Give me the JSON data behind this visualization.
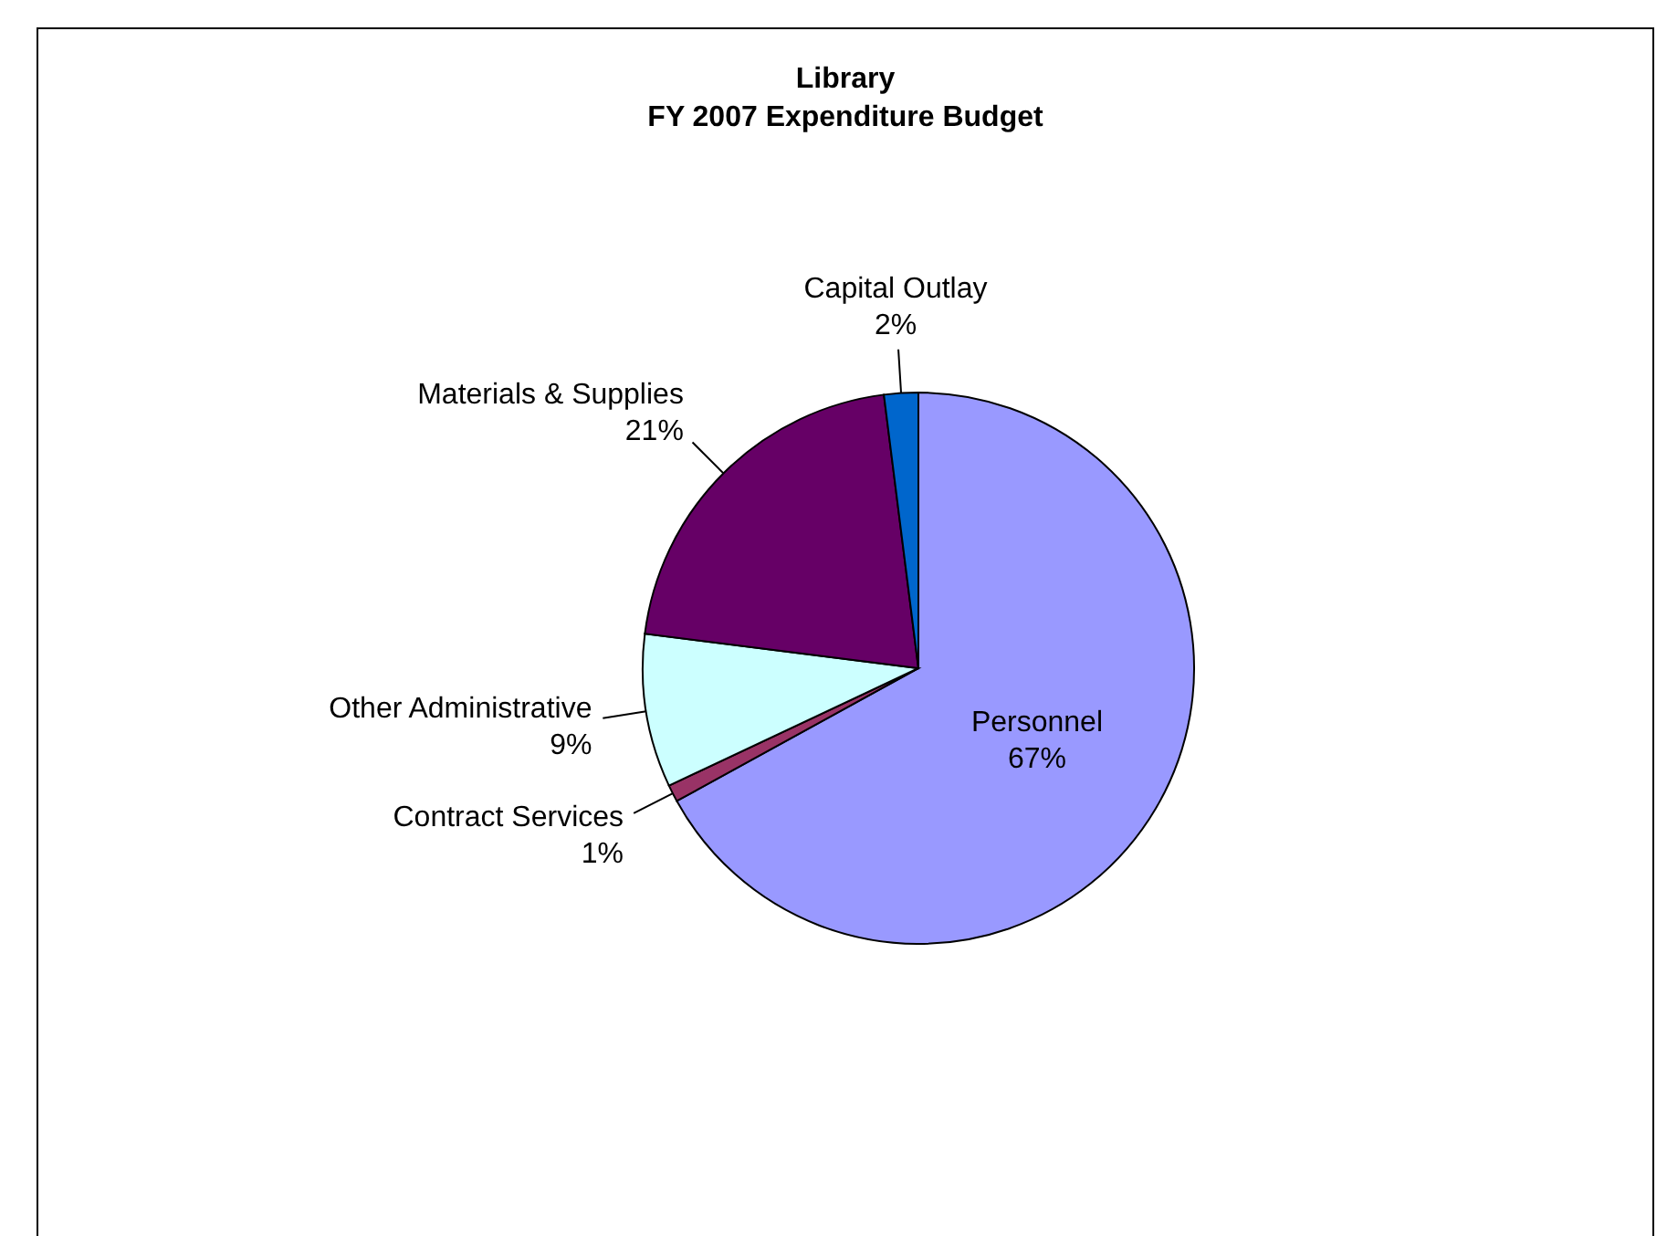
{
  "chart_data": {
    "type": "pie",
    "title": "Library\nFY 2007 Expenditure Budget",
    "categories": [
      "Personnel",
      "Contract Services",
      "Other Administrative",
      "Materials & Supplies",
      "Capital Outlay"
    ],
    "values": [
      67,
      1,
      9,
      21,
      2
    ],
    "colors": [
      "#9999ff",
      "#993366",
      "#ccffff",
      "#660066",
      "#0066cc"
    ],
    "value_labels": [
      "67%",
      "1%",
      "9%",
      "21%",
      "2%"
    ]
  }
}
